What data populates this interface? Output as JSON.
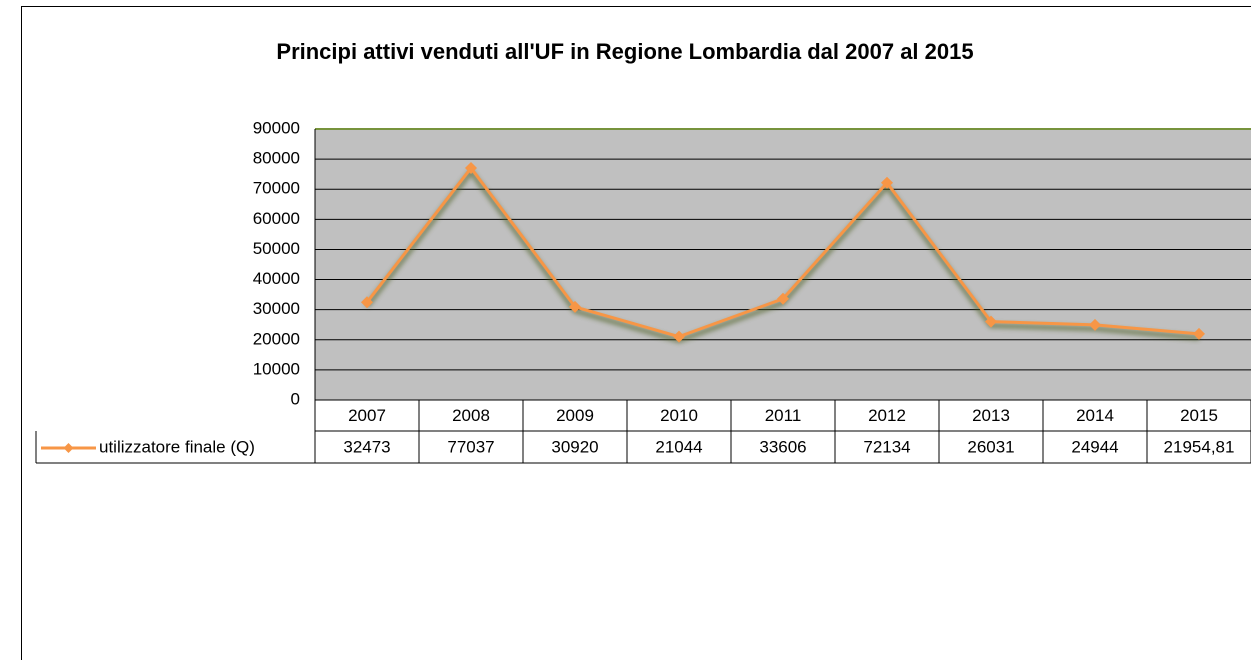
{
  "chart_data": {
    "type": "line",
    "title": "Principi attivi venduti all'UF in Regione Lombardia dal 2007 al 2015",
    "categories": [
      "2007",
      "2008",
      "2009",
      "2010",
      "2011",
      "2012",
      "2013",
      "2014",
      "2015"
    ],
    "series": [
      {
        "name": "utilizzatore finale (Q)",
        "color": "#f79646",
        "values": [
          32473,
          77037,
          30920,
          21044,
          33606,
          72134,
          26031,
          24944,
          21954.81
        ],
        "value_labels": [
          "32473",
          "77037",
          "30920",
          "21044",
          "33606",
          "72134",
          "26031",
          "24944",
          "21954,81"
        ]
      }
    ],
    "ylim": [
      0,
      90000
    ],
    "yticks": [
      0,
      10000,
      20000,
      30000,
      40000,
      50000,
      60000,
      70000,
      80000,
      90000
    ],
    "grid": true
  }
}
